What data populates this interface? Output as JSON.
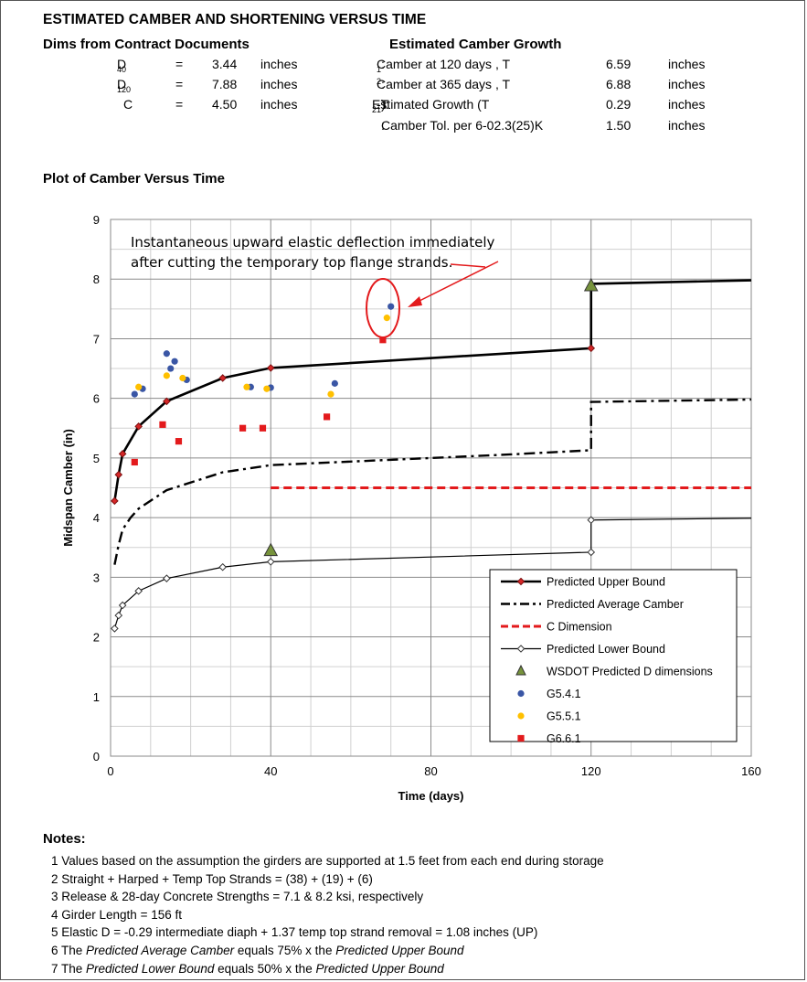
{
  "header": {
    "title": "ESTIMATED CAMBER AND SHORTENING VERSUS TIME",
    "dims_heading": "Dims from Contract Documents",
    "growth_heading": "Estimated Camber Growth",
    "plot_heading": "Plot of Camber Versus Time"
  },
  "dims": [
    {
      "label": "D",
      "sub": "40",
      "eq": "=",
      "value": "3.44",
      "unit": "inches"
    },
    {
      "label": "D",
      "sub": "120",
      "eq": "=",
      "value": "7.88",
      "unit": "inches"
    },
    {
      "label": "C",
      "sub": "",
      "eq": "=",
      "value": "4.50",
      "unit": "inches"
    }
  ],
  "growth": [
    {
      "label": "Camber at 120 days  , T",
      "sub": "1",
      "suffix": ":",
      "value": "6.59",
      "unit": "inches"
    },
    {
      "label": "Camber at 365 days  , T",
      "sub": "2",
      "suffix": ":",
      "value": "6.88",
      "unit": "inches"
    },
    {
      "label": "Estimated Growth (T",
      "sub": "2",
      "mid": "-T",
      "sub2": "1",
      "suffix": "):",
      "value": "0.29",
      "unit": "inches"
    },
    {
      "label": "Camber Tol. per 6-02.3(25)K",
      "sub": "",
      "suffix": ":",
      "value": "1.50",
      "unit": "inches"
    }
  ],
  "chart_data": {
    "type": "line",
    "xlabel": "Time (days)",
    "ylabel": "Midspan Camber (in)",
    "xlim": [
      0,
      160
    ],
    "ylim": [
      0,
      9
    ],
    "xticks": [
      0,
      40,
      80,
      120,
      160
    ],
    "yticks": [
      0,
      1,
      2,
      3,
      4,
      5,
      6,
      7,
      8,
      9
    ],
    "grid": true,
    "legend_position": "bottom-right",
    "annotation": {
      "line1": "Instantaneous upward elastic deflection immediately",
      "line2": "after cutting the temporary top flange strands."
    },
    "series": [
      {
        "name": "Predicted Upper Bound",
        "style": "line-diamond",
        "color": "#000000",
        "marker_color": "#d62728",
        "x": [
          1,
          2,
          3,
          7,
          14,
          28,
          40,
          120,
          120,
          160
        ],
        "y": [
          4.28,
          4.72,
          5.07,
          5.53,
          5.95,
          6.34,
          6.51,
          6.84,
          7.92,
          7.98
        ],
        "markers": [
          0,
          1,
          2,
          3,
          4,
          5,
          6,
          7
        ]
      },
      {
        "name": "Predicted Average Camber",
        "style": "dashdot",
        "color": "#000000",
        "x": [
          1,
          2,
          3,
          5,
          7,
          14,
          28,
          40,
          60,
          80,
          100,
          120,
          120,
          160
        ],
        "y": [
          3.21,
          3.54,
          3.8,
          4.0,
          4.15,
          4.46,
          4.76,
          4.88,
          4.94,
          5.0,
          5.06,
          5.13,
          5.94,
          5.98
        ]
      },
      {
        "name": "C Dimension",
        "style": "dashed",
        "color": "#e31a1c",
        "x": [
          40,
          160
        ],
        "y": [
          4.5,
          4.5
        ]
      },
      {
        "name": "Predicted Lower Bound",
        "style": "line-diamond-open",
        "color": "#000000",
        "x": [
          1,
          2,
          3,
          7,
          14,
          28,
          40,
          120,
          120,
          160
        ],
        "y": [
          2.14,
          2.36,
          2.53,
          2.77,
          2.98,
          3.17,
          3.26,
          3.42,
          3.96,
          3.99
        ],
        "markers": [
          0,
          1,
          2,
          3,
          4,
          5,
          6,
          7,
          8
        ]
      },
      {
        "name": "WSDOT Predicted D dimensions",
        "style": "triangle",
        "color": "#77933c",
        "x": [
          40,
          120
        ],
        "y": [
          3.44,
          7.88
        ]
      },
      {
        "name": "G5.4.1",
        "style": "circle",
        "color": "#3a56a5",
        "x": [
          6,
          8,
          14,
          15,
          16,
          19,
          35,
          40,
          56,
          70
        ],
        "y": [
          6.07,
          6.16,
          6.75,
          6.5,
          6.62,
          6.31,
          6.19,
          6.18,
          6.25,
          7.54
        ]
      },
      {
        "name": "G5.5.1",
        "style": "circle",
        "color": "#ffc000",
        "x": [
          7,
          14,
          18,
          34,
          39,
          55,
          69
        ],
        "y": [
          6.19,
          6.38,
          6.34,
          6.19,
          6.16,
          6.07,
          7.35
        ]
      },
      {
        "name": "G6.6.1",
        "style": "square",
        "color": "#e31a1c",
        "x": [
          6,
          13,
          17,
          33,
          38,
          54,
          68
        ],
        "y": [
          4.93,
          5.56,
          5.28,
          5.5,
          5.5,
          5.69,
          6.98
        ]
      }
    ]
  },
  "notes": {
    "heading": "Notes:",
    "items": [
      {
        "num": "1",
        "text": "Values based on the assumption the girders are supported at 1.5 feet from each end during storage"
      },
      {
        "num": "2",
        "text": "Straight + Harped + Temp Top Strands = (38) + (19) + (6)"
      },
      {
        "num": "3",
        "text": "Release & 28-day Concrete Strengths = 7.1 & 8.2 ksi, respectively"
      },
      {
        "num": "4",
        "text": "Girder Length = 156 ft"
      },
      {
        "num": "5",
        "text": "Elastic D = -0.29 intermediate diaph + 1.37 temp top strand removal = 1.08 inches (UP)"
      },
      {
        "num": "6",
        "pre": "The ",
        "em": "Predicted Average Camber",
        "mid": "  equals 75% x the ",
        "em2": "Predicted Upper Bound"
      },
      {
        "num": "7",
        "pre": "The ",
        "em": "Predicted Lower Bound",
        "mid": "  equals 50% x the ",
        "em2": "Predicted Upper Bound"
      }
    ]
  }
}
